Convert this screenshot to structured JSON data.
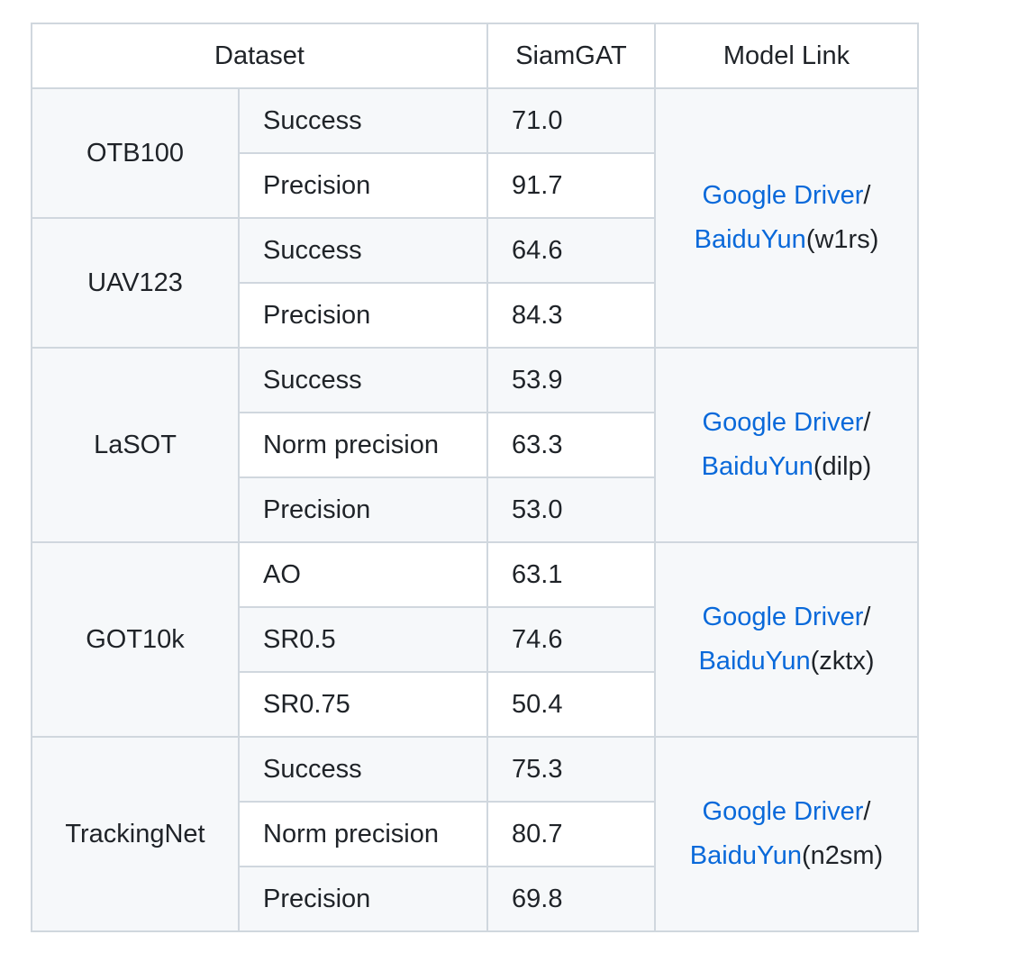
{
  "table": {
    "header": {
      "dataset": "Dataset",
      "siamgat": "SiamGAT",
      "model_link": "Model Link"
    },
    "groups": [
      {
        "dataset": "OTB100",
        "metrics": [
          {
            "name": "Success",
            "value": "71.0"
          },
          {
            "name": "Precision",
            "value": "91.7"
          }
        ]
      },
      {
        "dataset": "UAV123",
        "metrics": [
          {
            "name": "Success",
            "value": "64.6"
          },
          {
            "name": "Precision",
            "value": "84.3"
          }
        ]
      },
      {
        "dataset": "LaSOT",
        "metrics": [
          {
            "name": "Success",
            "value": "53.9"
          },
          {
            "name": "Norm precision",
            "value": "63.3"
          },
          {
            "name": "Precision",
            "value": "53.0"
          }
        ]
      },
      {
        "dataset": "GOT10k",
        "metrics": [
          {
            "name": "AO",
            "value": "63.1"
          },
          {
            "name": "SR0.5",
            "value": "74.6"
          },
          {
            "name": "SR0.75",
            "value": "50.4"
          }
        ]
      },
      {
        "dataset": "TrackingNet",
        "metrics": [
          {
            "name": "Success",
            "value": "75.3"
          },
          {
            "name": "Norm precision",
            "value": "80.7"
          },
          {
            "name": "Precision",
            "value": "69.8"
          }
        ]
      }
    ],
    "links": [
      {
        "google": "Google Driver",
        "slash": "/",
        "baidu": "BaiduYun",
        "code": "(w1rs)"
      },
      {
        "google": "Google Driver",
        "slash": "/",
        "baidu": "BaiduYun",
        "code": "(dilp)"
      },
      {
        "google": "Google Driver",
        "slash": "/",
        "baidu": "BaiduYun",
        "code": "(zktx)"
      },
      {
        "google": "Google Driver",
        "slash": "/",
        "baidu": "BaiduYun",
        "code": "(n2sm)"
      }
    ]
  }
}
